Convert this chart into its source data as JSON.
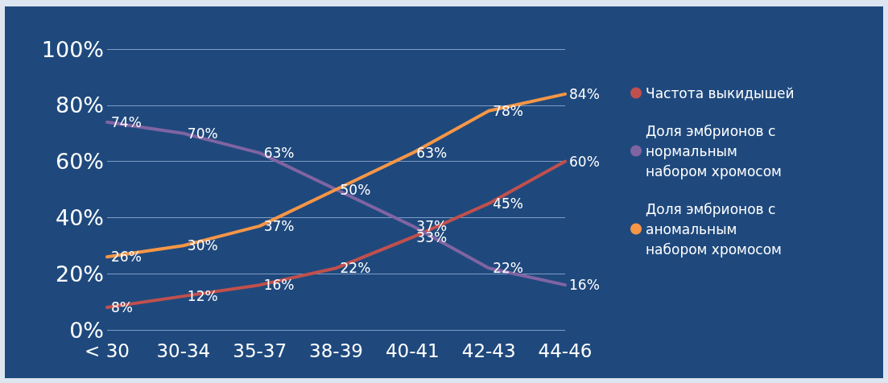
{
  "chart_data": {
    "type": "line",
    "categories": [
      "< 30",
      "30-34",
      "35-37",
      "38-39",
      "40-41",
      "42-43",
      "44-46"
    ],
    "series": [
      {
        "name": "Частота выкидышей",
        "color": "#c0504d",
        "values": [
          8,
          12,
          16,
          22,
          33,
          45,
          60
        ],
        "value_labels": [
          "8%",
          "12%",
          "16%",
          "22%",
          "33%",
          "45%",
          "60%"
        ]
      },
      {
        "name": "Доля эмбрионов с нормальным набором хромосом",
        "color": "#8064a2",
        "values": [
          74,
          70,
          63,
          50,
          37,
          22,
          16
        ],
        "value_labels": [
          "74%",
          "70%",
          "63%",
          null,
          "37%",
          "22%",
          "16%"
        ]
      },
      {
        "name": "Доля эмбрионов с аномальным набором хромосом",
        "color": "#f79646",
        "values": [
          26,
          30,
          37,
          50,
          63,
          78,
          84
        ],
        "value_labels": [
          "26%",
          "30%",
          "37%",
          "50%",
          "63%",
          "78%",
          "84%"
        ]
      }
    ],
    "ylim": [
      0,
      100
    ],
    "yticks": [
      {
        "value": 0,
        "label": "0%"
      },
      {
        "value": 20,
        "label": "20%"
      },
      {
        "value": 40,
        "label": "40%"
      },
      {
        "value": 60,
        "label": "60%"
      },
      {
        "value": 80,
        "label": "80%"
      },
      {
        "value": 100,
        "label": "100%"
      }
    ],
    "grid": "y",
    "legend": "right",
    "marker": "none",
    "line_style": "solid"
  }
}
